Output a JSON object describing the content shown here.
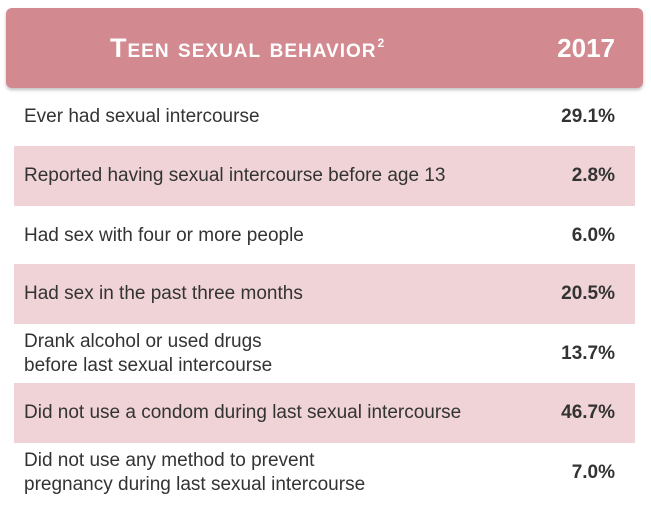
{
  "header": {
    "title": "Teen sexual behavior",
    "superscript": "2",
    "year": "2017"
  },
  "rows": [
    {
      "label": "Ever had sexual intercourse",
      "value": "29.1%"
    },
    {
      "label": "Reported having sexual intercourse before age 13",
      "value": "2.8%"
    },
    {
      "label": "Had sex with four or more people",
      "value": "6.0%"
    },
    {
      "label": "Had sex in the past three months",
      "value": "20.5%"
    },
    {
      "label": "Drank alcohol or used drugs\nbefore last sexual intercourse",
      "value": "13.7%"
    },
    {
      "label": "Did not use a condom during last sexual intercourse",
      "value": "46.7%"
    },
    {
      "label": "Did not use any method to prevent\npregnancy during last sexual intercourse",
      "value": "7.0%"
    }
  ],
  "colors": {
    "header_bg": "#d28a90",
    "shaded_row_bg": "#efd3d6",
    "text": "#333333"
  }
}
